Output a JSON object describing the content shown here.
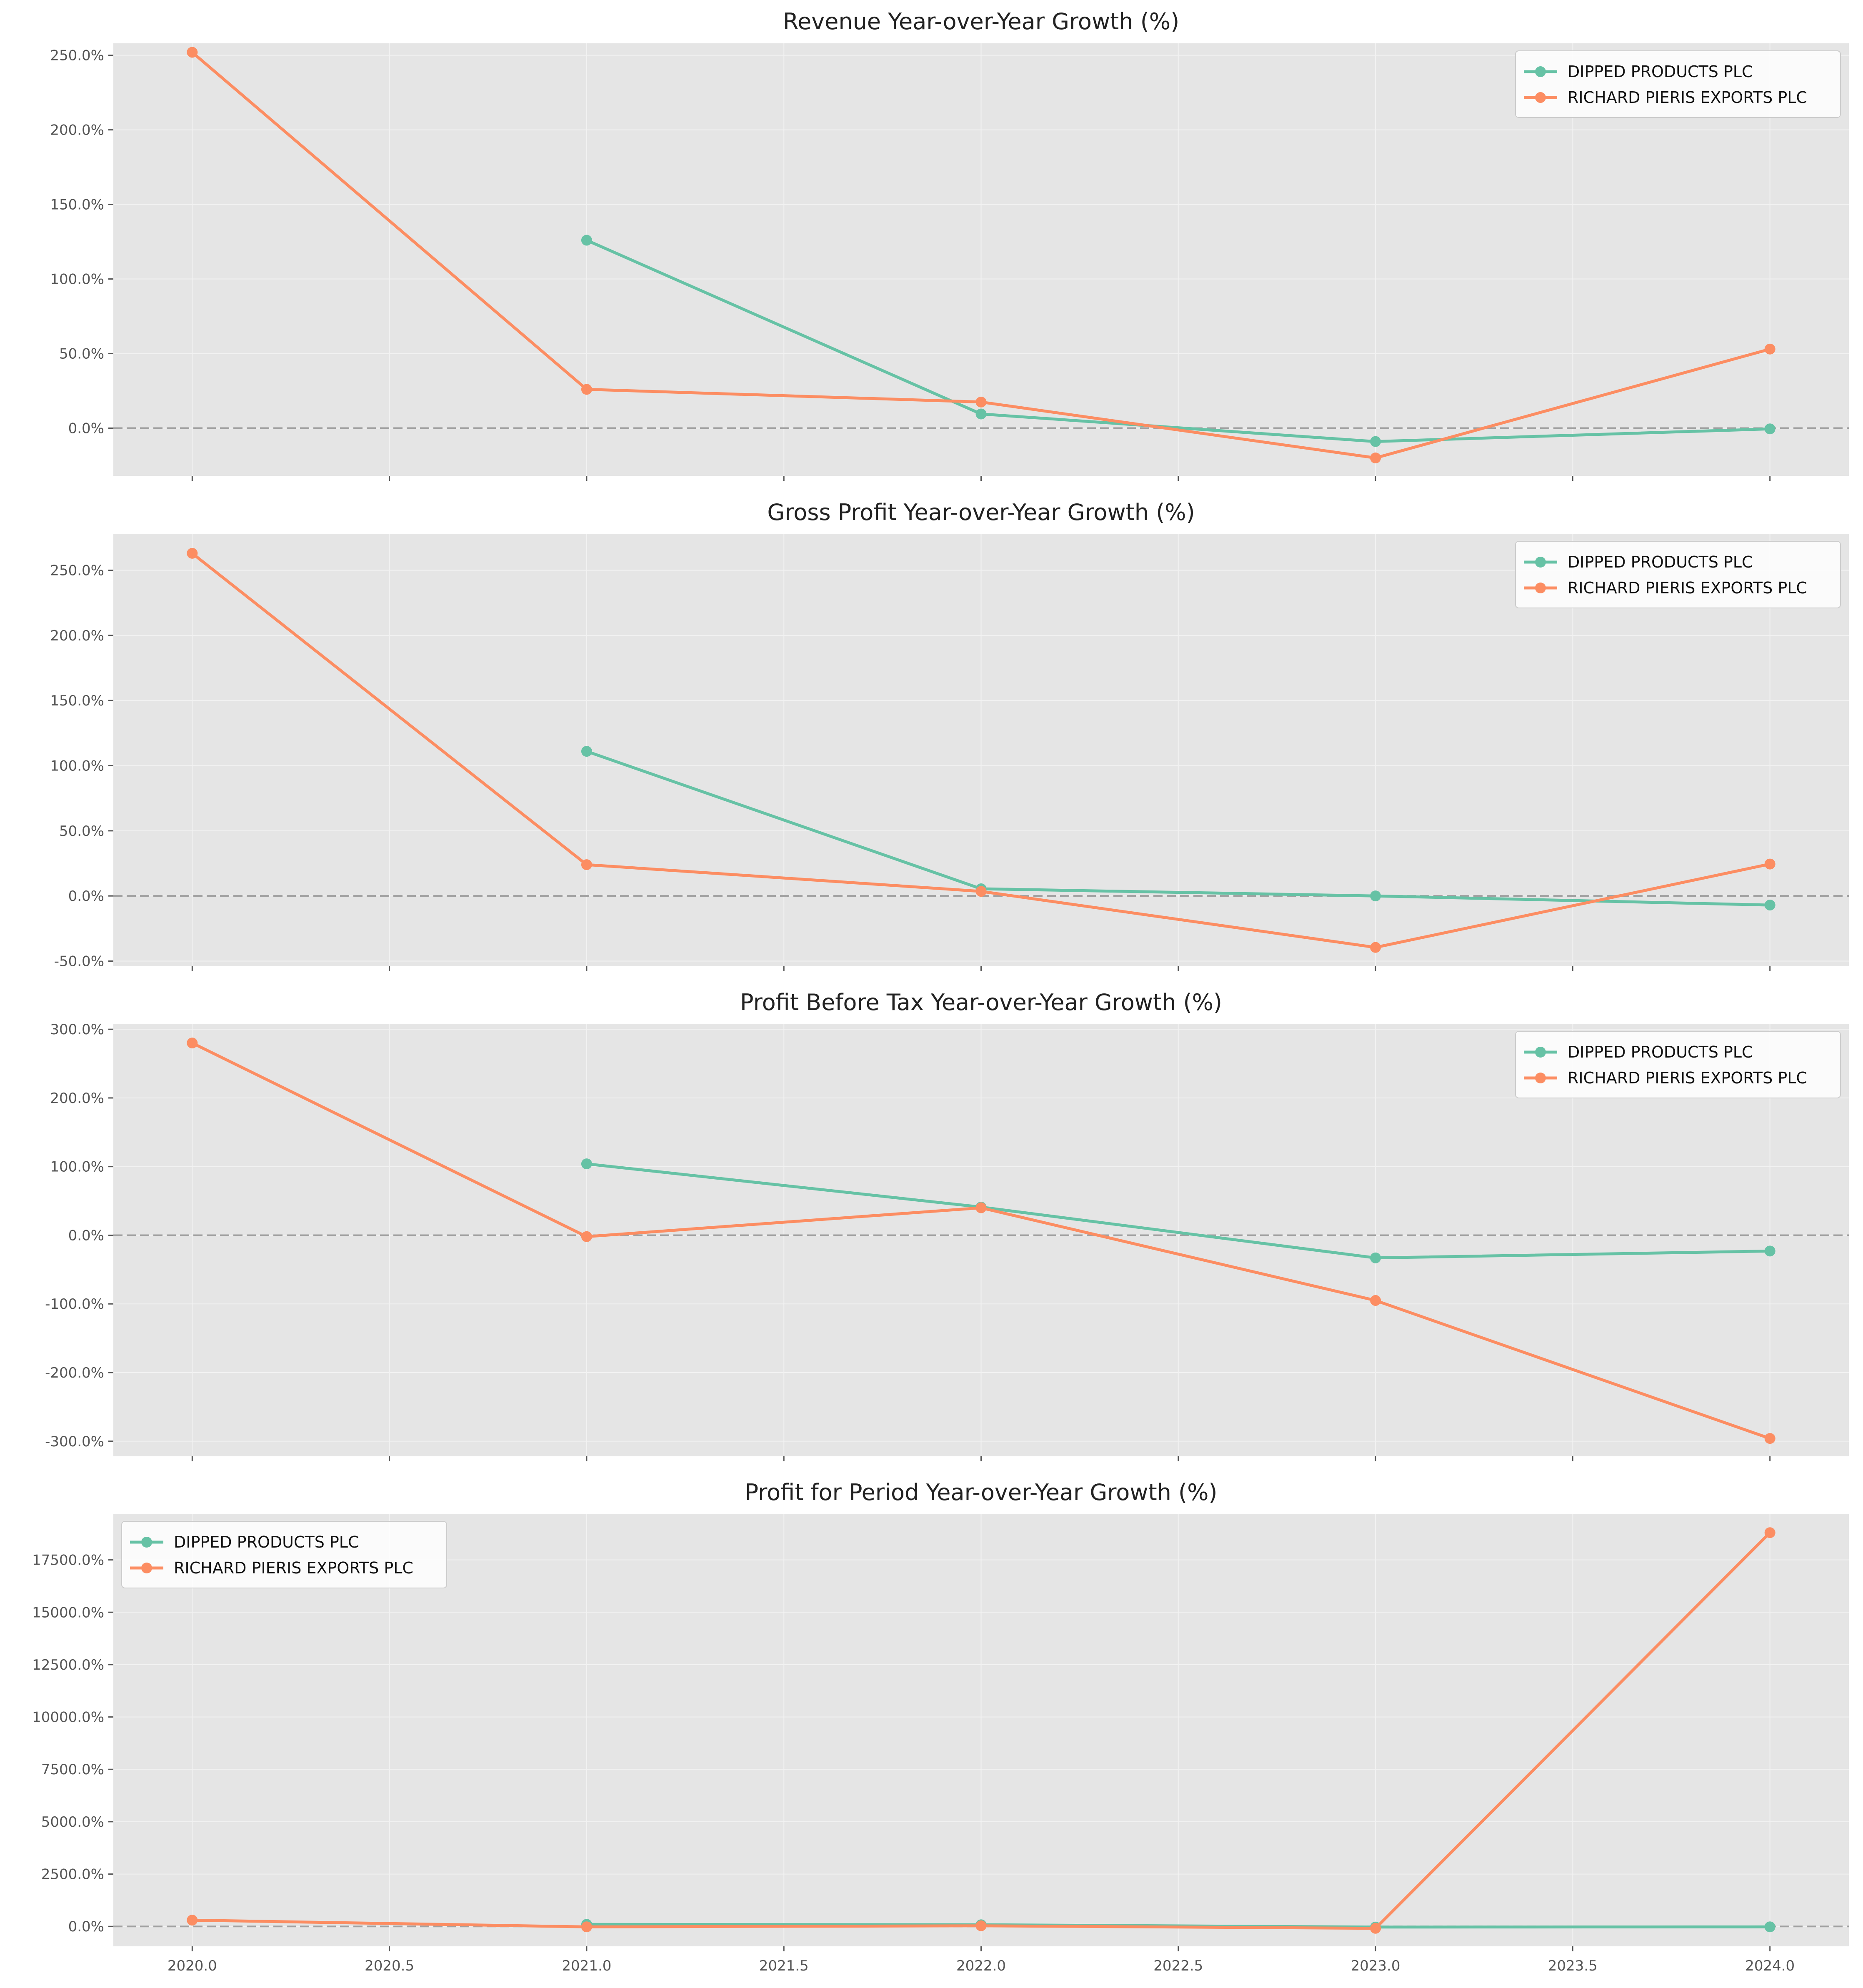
{
  "colors": {
    "dipped": "#66c2a5",
    "richard": "#fc8d62",
    "panel_bg": "#e5e5e5",
    "grid": "#f2f2f2",
    "zero_line": "#a0a0a0"
  },
  "x_ticks": [
    "2020.0",
    "2020.5",
    "2021.0",
    "2021.5",
    "2022.0",
    "2022.5",
    "2023.0",
    "2023.5",
    "2024.0"
  ],
  "chart_data": [
    {
      "type": "line",
      "title": "Revenue Year-over-Year Growth (%)",
      "x_range": [
        2019.8,
        2024.2
      ],
      "ylim": [
        -32,
        258
      ],
      "yticks": [
        0,
        50,
        100,
        150,
        200,
        250
      ],
      "ytick_labels": [
        "0.0%",
        "50.0%",
        "100.0%",
        "150.0%",
        "200.0%",
        "250.0%"
      ],
      "legend_position": "upper-right",
      "series": [
        {
          "name": "DIPPED PRODUCTS PLC",
          "color": "#66c2a5",
          "x": [
            2021,
            2022,
            2023,
            2024
          ],
          "y": [
            126,
            9.5,
            -9,
            -0.5
          ]
        },
        {
          "name": "RICHARD PIERIS EXPORTS PLC",
          "color": "#fc8d62",
          "x": [
            2020,
            2021,
            2022,
            2023,
            2024
          ],
          "y": [
            252,
            26,
            17.5,
            -20,
            53
          ]
        }
      ]
    },
    {
      "type": "line",
      "title": "Gross Profit Year-over-Year Growth (%)",
      "x_range": [
        2019.8,
        2024.2
      ],
      "ylim": [
        -54,
        278
      ],
      "yticks": [
        -50,
        0,
        50,
        100,
        150,
        200,
        250
      ],
      "ytick_labels": [
        "-50.0%",
        "0.0%",
        "50.0%",
        "100.0%",
        "150.0%",
        "200.0%",
        "250.0%"
      ],
      "legend_position": "upper-right",
      "series": [
        {
          "name": "DIPPED PRODUCTS PLC",
          "color": "#66c2a5",
          "x": [
            2021,
            2022,
            2023,
            2024
          ],
          "y": [
            111,
            5.5,
            0,
            -7
          ]
        },
        {
          "name": "RICHARD PIERIS EXPORTS PLC",
          "color": "#fc8d62",
          "x": [
            2020,
            2021,
            2022,
            2023,
            2024
          ],
          "y": [
            263,
            24,
            3.5,
            -39.5,
            24.5
          ]
        }
      ]
    },
    {
      "type": "line",
      "title": "Profit Before Tax Year-over-Year Growth (%)",
      "x_range": [
        2019.8,
        2024.2
      ],
      "ylim": [
        -322,
        308
      ],
      "yticks": [
        -300,
        -200,
        -100,
        0,
        100,
        200,
        300
      ],
      "ytick_labels": [
        "-300.0%",
        "-200.0%",
        "-100.0%",
        "0.0%",
        "100.0%",
        "200.0%",
        "300.0%"
      ],
      "legend_position": "upper-right",
      "series": [
        {
          "name": "DIPPED PRODUCTS PLC",
          "color": "#66c2a5",
          "x": [
            2021,
            2022,
            2023,
            2024
          ],
          "y": [
            104,
            41,
            -33,
            -23
          ]
        },
        {
          "name": "RICHARD PIERIS EXPORTS PLC",
          "color": "#fc8d62",
          "x": [
            2020,
            2021,
            2022,
            2023,
            2024
          ],
          "y": [
            280,
            -2,
            40,
            -95,
            -296
          ]
        }
      ]
    },
    {
      "type": "line",
      "title": "Profit for Period Year-over-Year Growth (%)",
      "x_range": [
        2019.8,
        2024.2
      ],
      "ylim": [
        -950,
        19700
      ],
      "yticks": [
        0,
        2500,
        5000,
        7500,
        10000,
        12500,
        15000,
        17500
      ],
      "ytick_labels": [
        "0.0%",
        "2500.0%",
        "5000.0%",
        "7500.0%",
        "10000.0%",
        "12500.0%",
        "15000.0%",
        "17500.0%"
      ],
      "legend_position": "upper-left",
      "series": [
        {
          "name": "DIPPED PRODUCTS PLC",
          "color": "#66c2a5",
          "x": [
            2021,
            2022,
            2023,
            2024
          ],
          "y": [
            100,
            80,
            -30,
            -20
          ]
        },
        {
          "name": "RICHARD PIERIS EXPORTS PLC",
          "color": "#fc8d62",
          "x": [
            2020,
            2021,
            2022,
            2023,
            2024
          ],
          "y": [
            300,
            -20,
            30,
            -90,
            18800
          ]
        }
      ]
    }
  ]
}
